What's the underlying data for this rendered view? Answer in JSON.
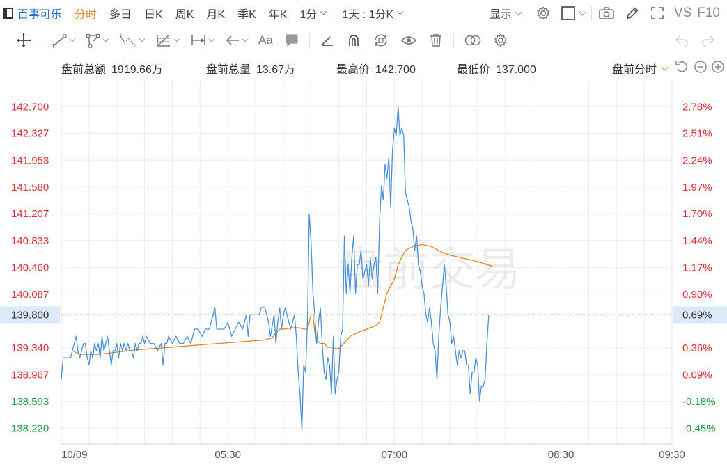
{
  "toolbar": {
    "stock_name": "百事可乐",
    "tabs": [
      {
        "label": "分时",
        "active": true
      },
      {
        "label": "多日",
        "active": false
      },
      {
        "label": "日K",
        "active": false
      },
      {
        "label": "周K",
        "active": false
      },
      {
        "label": "月K",
        "active": false
      },
      {
        "label": "季K",
        "active": false
      },
      {
        "label": "年K",
        "active": false
      }
    ],
    "interval": "1分",
    "period": "1天 : 1分K",
    "display": "显示",
    "vs_label": "VS",
    "f10_label": "F10"
  },
  "drawing_toolbar": {
    "text_tool_label": "Aa"
  },
  "stats": {
    "turnover_label": "盘前总额",
    "turnover_value": "1919.66万",
    "volume_label": "盘前总量",
    "volume_value": "13.67万",
    "high_label": "最高价",
    "high_value": "142.700",
    "low_label": "最低价",
    "low_value": "137.000",
    "mode": "盘前分时"
  },
  "colors": {
    "up": "#e03131",
    "down": "#1a9a3a",
    "price_line": "#4a90d9",
    "avg_line": "#e8811f",
    "accent": "#e8811f",
    "grid": "#e9edf2"
  },
  "chart_data": {
    "type": "line",
    "watermark": "盘前交易",
    "prev_close": 139.8,
    "prev_close_pct": "0.69%",
    "ylim": [
      138.0,
      143.1
    ],
    "y_ticks_left": [
      "142.700",
      "142.327",
      "141.953",
      "141.580",
      "141.207",
      "140.833",
      "140.460",
      "140.087",
      "139.800",
      "139.340",
      "138.967",
      "138.593",
      "138.220"
    ],
    "y_tick_values": [
      142.7,
      142.327,
      141.953,
      141.58,
      141.207,
      140.833,
      140.46,
      140.087,
      139.8,
      139.34,
      138.967,
      138.593,
      138.22
    ],
    "y_ticks_right": [
      "2.78%",
      "2.51%",
      "2.24%",
      "1.97%",
      "1.70%",
      "1.44%",
      "1.17%",
      "0.90%",
      "0.69%",
      "0.36%",
      "0.09%",
      "-0.18%",
      "-0.45%"
    ],
    "x_ticks": [
      {
        "label": "10/09",
        "t": 0
      },
      {
        "label": "05:30",
        "t": 90
      },
      {
        "label": "07:00",
        "t": 180
      },
      {
        "label": "08:30",
        "t": 270
      },
      {
        "label": "09:30",
        "t": 330
      }
    ],
    "x_range": [
      0,
      330
    ],
    "series": [
      {
        "key": "price",
        "points": [
          [
            0,
            138.9
          ],
          [
            1,
            139.2
          ],
          [
            3,
            139.2
          ],
          [
            5,
            139.2
          ],
          [
            7,
            139.4
          ],
          [
            8,
            139.5
          ],
          [
            9,
            139.3
          ],
          [
            10,
            139.2
          ],
          [
            11,
            139.3
          ],
          [
            12,
            139.4
          ],
          [
            13,
            139.4
          ],
          [
            14,
            139.2
          ],
          [
            15,
            139.1
          ],
          [
            16,
            139.3
          ],
          [
            17,
            139.2
          ],
          [
            18,
            139.4
          ],
          [
            19,
            139.3
          ],
          [
            20,
            139.4
          ],
          [
            21,
            139.2
          ],
          [
            22,
            139.5
          ],
          [
            23,
            139.3
          ],
          [
            24,
            139.4
          ],
          [
            25,
            139.5
          ],
          [
            26,
            139.3
          ],
          [
            27,
            139.1
          ],
          [
            28,
            139.3
          ],
          [
            29,
            139.3
          ],
          [
            30,
            139.4
          ],
          [
            31,
            139.2
          ],
          [
            32,
            139.4
          ],
          [
            33,
            139.3
          ],
          [
            34,
            139.4
          ],
          [
            35,
            139.3
          ],
          [
            36,
            139.4
          ],
          [
            37,
            139.3
          ],
          [
            38,
            139.3
          ],
          [
            39,
            139.2
          ],
          [
            40,
            139.4
          ],
          [
            41,
            139.3
          ],
          [
            42,
            139.4
          ],
          [
            43,
            139.4
          ],
          [
            44,
            139.5
          ],
          [
            45,
            139.4
          ],
          [
            46,
            139.5
          ],
          [
            48,
            139.4
          ],
          [
            50,
            139.4
          ],
          [
            52,
            139.3
          ],
          [
            54,
            139.4
          ],
          [
            55,
            139.1
          ],
          [
            56,
            139.4
          ],
          [
            57,
            139.4
          ],
          [
            58,
            139.5
          ],
          [
            60,
            139.4
          ],
          [
            62,
            139.5
          ],
          [
            64,
            139.4
          ],
          [
            66,
            139.4
          ],
          [
            68,
            139.5
          ],
          [
            70,
            139.4
          ],
          [
            72,
            139.6
          ],
          [
            74,
            139.6
          ],
          [
            76,
            139.5
          ],
          [
            78,
            139.6
          ],
          [
            80,
            139.6
          ],
          [
            82,
            139.8
          ],
          [
            83,
            139.9
          ],
          [
            84,
            139.6
          ],
          [
            86,
            139.6
          ],
          [
            88,
            139.6
          ],
          [
            90,
            139.7
          ],
          [
            92,
            139.5
          ],
          [
            94,
            139.6
          ],
          [
            96,
            139.7
          ],
          [
            98,
            139.6
          ],
          [
            100,
            139.8
          ],
          [
            101,
            139.5
          ],
          [
            102,
            139.8
          ],
          [
            103,
            139.8
          ],
          [
            104,
            139.8
          ],
          [
            106,
            139.8
          ],
          [
            107,
            139.8
          ],
          [
            108,
            139.9
          ],
          [
            110,
            139.9
          ],
          [
            112,
            139.7
          ],
          [
            113,
            139.5
          ],
          [
            115,
            139.8
          ],
          [
            116,
            139.4
          ],
          [
            117,
            139.7
          ],
          [
            118,
            139.9
          ],
          [
            119,
            139.6
          ],
          [
            120,
            139.8
          ],
          [
            121,
            139.9
          ],
          [
            122,
            139.8
          ],
          [
            123,
            139.7
          ],
          [
            124,
            139.6
          ],
          [
            126,
            139.8
          ],
          [
            127,
            139.5
          ],
          [
            128,
            139.0
          ],
          [
            129,
            138.7
          ],
          [
            130,
            138.2
          ],
          [
            131,
            139.1
          ],
          [
            132,
            139.0
          ],
          [
            133,
            139.7
          ],
          [
            134,
            141.2
          ],
          [
            135,
            140.8
          ],
          [
            136,
            140.1
          ],
          [
            137,
            139.8
          ],
          [
            138,
            139.4
          ],
          [
            139,
            139.7
          ],
          [
            140,
            139.9
          ],
          [
            141,
            139.4
          ],
          [
            142,
            139.0
          ],
          [
            143,
            138.9
          ],
          [
            144,
            139.2
          ],
          [
            145,
            139.1
          ],
          [
            146,
            138.7
          ],
          [
            147,
            139.5
          ],
          [
            148,
            138.7
          ],
          [
            149,
            138.9
          ],
          [
            150,
            139.0
          ],
          [
            151,
            139.5
          ],
          [
            152,
            139.6
          ],
          [
            153,
            140.9
          ],
          [
            154,
            140.1
          ],
          [
            155,
            140.5
          ],
          [
            156,
            140.1
          ],
          [
            157,
            140.6
          ],
          [
            158,
            140.9
          ],
          [
            159,
            140.1
          ],
          [
            160,
            140.5
          ],
          [
            161,
            140.5
          ],
          [
            162,
            140.7
          ],
          [
            163,
            140.3
          ],
          [
            164,
            140.4
          ],
          [
            165,
            140.5
          ],
          [
            166,
            140.2
          ],
          [
            167,
            140.6
          ],
          [
            168,
            140.3
          ],
          [
            169,
            140.5
          ],
          [
            170,
            140.6
          ],
          [
            171,
            140.1
          ],
          [
            172,
            141.1
          ],
          [
            173,
            141.6
          ],
          [
            174,
            141.4
          ],
          [
            175,
            141.9
          ],
          [
            176,
            141.7
          ],
          [
            177,
            142.0
          ],
          [
            178,
            141.3
          ],
          [
            179,
            142.1
          ],
          [
            180,
            142.4
          ],
          [
            181,
            142.3
          ],
          [
            182,
            142.7
          ],
          [
            183,
            142.3
          ],
          [
            184,
            142.4
          ],
          [
            185,
            142.3
          ],
          [
            186,
            141.5
          ],
          [
            187,
            141.4
          ],
          [
            188,
            141.3
          ],
          [
            189,
            141.1
          ],
          [
            190,
            141.0
          ],
          [
            191,
            140.7
          ],
          [
            192,
            140.9
          ],
          [
            193,
            140.5
          ],
          [
            194,
            140.4
          ],
          [
            195,
            140.2
          ],
          [
            196,
            140.1
          ],
          [
            197,
            139.8
          ],
          [
            198,
            139.7
          ],
          [
            199,
            139.9
          ],
          [
            200,
            139.7
          ],
          [
            201,
            139.4
          ],
          [
            202,
            139.3
          ],
          [
            203,
            138.9
          ],
          [
            204,
            139.5
          ],
          [
            205,
            139.9
          ],
          [
            206,
            140.2
          ],
          [
            207,
            140.5
          ],
          [
            208,
            140.2
          ],
          [
            209,
            139.8
          ],
          [
            210,
            139.7
          ],
          [
            211,
            139.4
          ],
          [
            212,
            139.5
          ],
          [
            213,
            139.3
          ],
          [
            214,
            139.1
          ],
          [
            215,
            139.3
          ],
          [
            216,
            139.2
          ],
          [
            217,
            139.3
          ],
          [
            218,
            139.3
          ],
          [
            219,
            139.1
          ],
          [
            220,
            139.1
          ],
          [
            221,
            138.7
          ],
          [
            222,
            139.0
          ],
          [
            223,
            139.0
          ],
          [
            224,
            139.2
          ],
          [
            225,
            139.1
          ],
          [
            226,
            138.6
          ],
          [
            227,
            138.8
          ],
          [
            228,
            138.8
          ],
          [
            229,
            138.9
          ],
          [
            230,
            139.4
          ],
          [
            231,
            139.8
          ]
        ]
      },
      {
        "key": "average",
        "points": [
          [
            6,
            139.3
          ],
          [
            10,
            139.25
          ],
          [
            20,
            139.25
          ],
          [
            30,
            139.28
          ],
          [
            40,
            139.31
          ],
          [
            50,
            139.33
          ],
          [
            60,
            139.35
          ],
          [
            70,
            139.37
          ],
          [
            80,
            139.39
          ],
          [
            90,
            139.41
          ],
          [
            100,
            139.43
          ],
          [
            110,
            139.45
          ],
          [
            114,
            139.48
          ],
          [
            116,
            139.55
          ],
          [
            118,
            139.6
          ],
          [
            120,
            139.6
          ],
          [
            126,
            139.62
          ],
          [
            128,
            139.62
          ],
          [
            131,
            139.6
          ],
          [
            132,
            139.6
          ],
          [
            133,
            139.6
          ],
          [
            134,
            139.7
          ],
          [
            135,
            139.8
          ],
          [
            136,
            139.8
          ],
          [
            137,
            139.55
          ],
          [
            138,
            139.45
          ],
          [
            140,
            139.4
          ],
          [
            141,
            139.4
          ],
          [
            142,
            139.4
          ],
          [
            144,
            139.35
          ],
          [
            146,
            139.35
          ],
          [
            148,
            139.33
          ],
          [
            150,
            139.33
          ],
          [
            152,
            139.38
          ],
          [
            154,
            139.44
          ],
          [
            156,
            139.5
          ],
          [
            160,
            139.55
          ],
          [
            165,
            139.6
          ],
          [
            170,
            139.65
          ],
          [
            172,
            139.7
          ],
          [
            174,
            139.9
          ],
          [
            176,
            140.1
          ],
          [
            178,
            140.2
          ],
          [
            180,
            140.3
          ],
          [
            182,
            140.5
          ],
          [
            184,
            140.6
          ],
          [
            186,
            140.7
          ],
          [
            190,
            140.75
          ],
          [
            195,
            140.78
          ],
          [
            200,
            140.75
          ],
          [
            205,
            140.68
          ],
          [
            210,
            140.63
          ],
          [
            215,
            140.6
          ],
          [
            220,
            140.57
          ],
          [
            225,
            140.54
          ],
          [
            230,
            140.5
          ],
          [
            233,
            140.48
          ]
        ]
      }
    ]
  }
}
